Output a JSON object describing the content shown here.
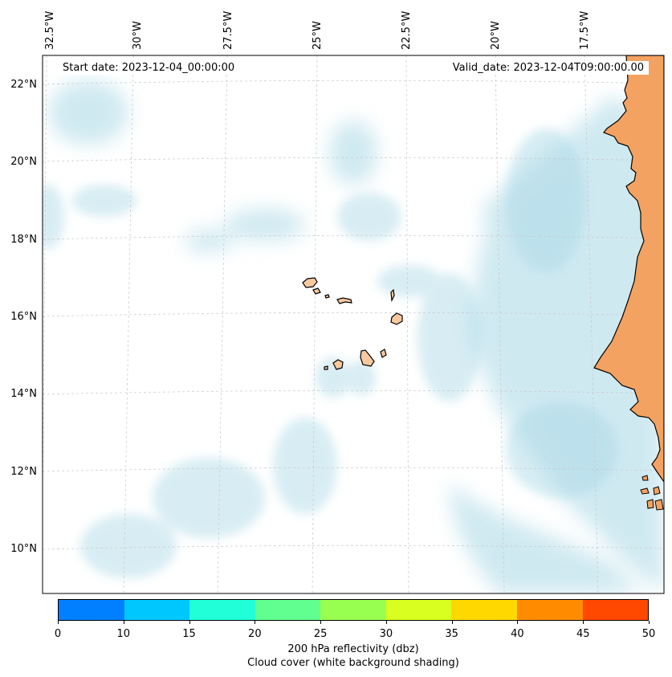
{
  "map": {
    "start_date": "Start date: 2023-12-04_00:00:00",
    "valid_date": "Valid_date: 2023-12-04T09:00:00.00",
    "lon_labels": [
      "32.5°W",
      "30°W",
      "27.5°W",
      "25°W",
      "22.5°W",
      "20°W",
      "17.5°W"
    ],
    "lat_labels": [
      "22°N",
      "20°N",
      "18°N",
      "16°N",
      "14°N",
      "12°N",
      "10°N"
    ],
    "land_color": "#f4a261",
    "island_color": "#f8c9a0",
    "cloud_color": "#a9d8e6",
    "grid_color": "#c8c8c8"
  },
  "colorbar": {
    "ticks": [
      "0",
      "10",
      "15",
      "20",
      "25",
      "30",
      "35",
      "40",
      "45",
      "50"
    ],
    "colors": [
      "#0080ff",
      "#00c8ff",
      "#20ffd8",
      "#60ff90",
      "#98ff50",
      "#d8ff20",
      "#ffd800",
      "#ff8c00",
      "#ff4800"
    ],
    "label_line1": "200 hPa reflectivity (dbz)",
    "label_line2": "Cloud cover (white background shading)"
  }
}
